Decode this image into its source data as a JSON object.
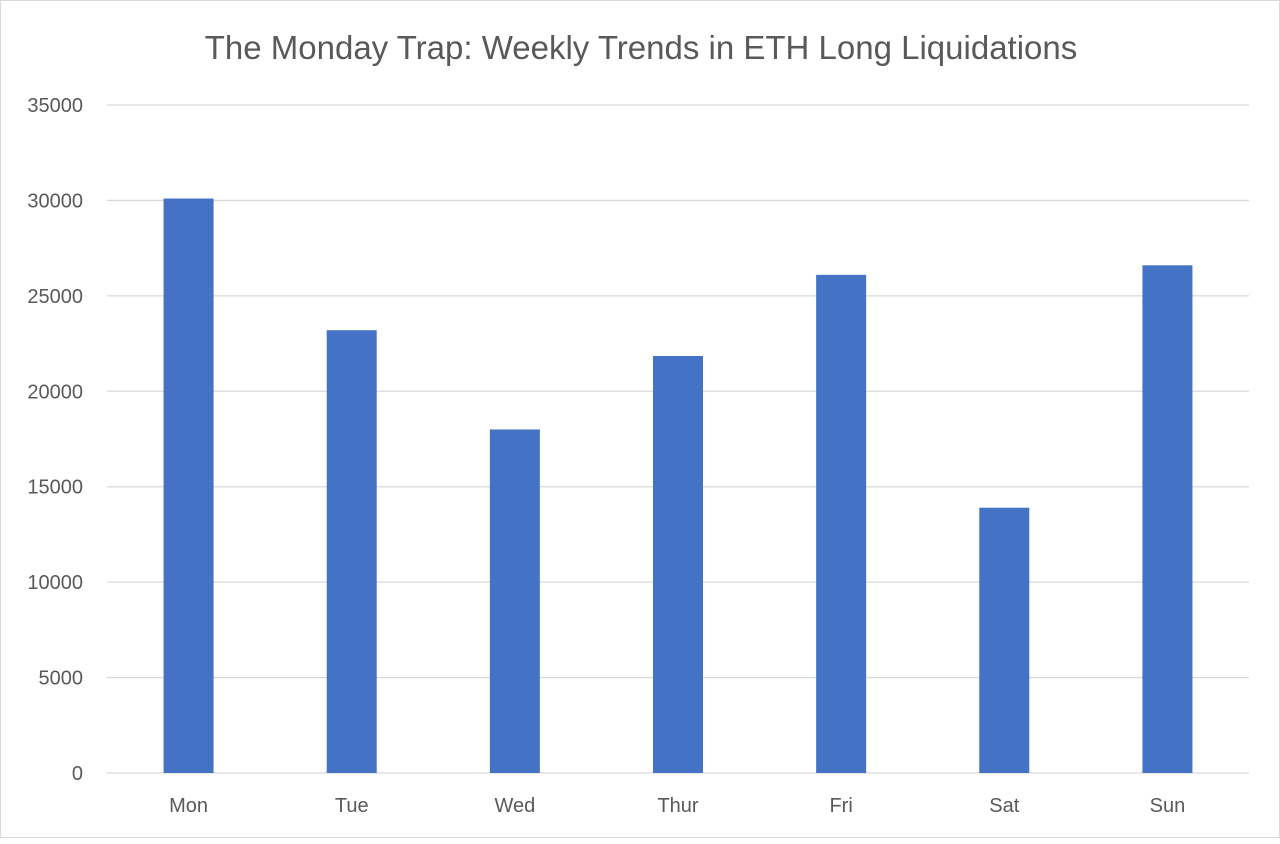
{
  "chart_data": {
    "type": "bar",
    "title": "The Monday Trap: Weekly Trends in ETH Long Liquidations",
    "xlabel": "",
    "ylabel": "",
    "categories": [
      "Mon",
      "Tue",
      "Wed",
      "Thur",
      "Fri",
      "Sat",
      "Sun"
    ],
    "values": [
      30100,
      23200,
      18000,
      21850,
      26100,
      13900,
      26600
    ],
    "ylim": [
      0,
      35000
    ],
    "yticks": [
      0,
      5000,
      10000,
      15000,
      20000,
      25000,
      30000,
      35000
    ],
    "grid": true,
    "legend": "none",
    "colors": {
      "bar": "#4472C4",
      "grid": "#d9d9d9",
      "text": "#595959"
    }
  }
}
